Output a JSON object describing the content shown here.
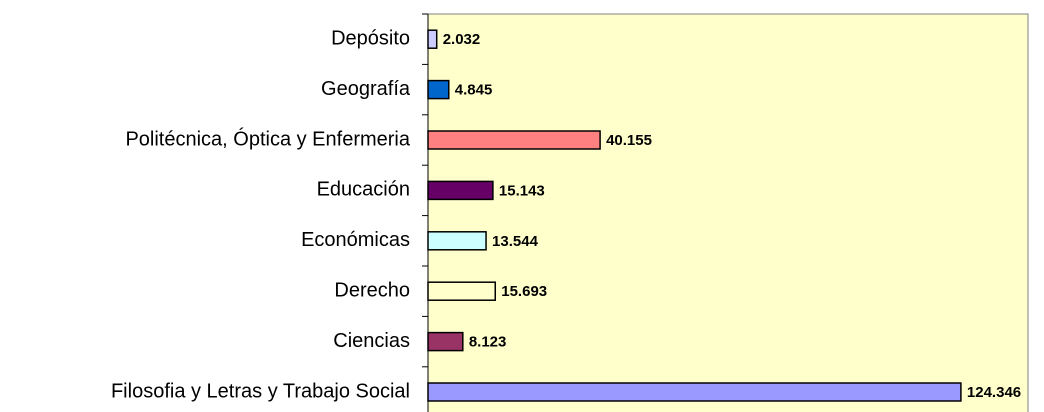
{
  "chart_data": {
    "type": "bar",
    "orientation": "horizontal",
    "categories": [
      "Depósito",
      "Geografía",
      "Politécnica, Óptica y Enfermeria",
      "Educación",
      "Económicas",
      "Derecho",
      "Ciencias",
      "Filosofia y Letras y Trabajo Social"
    ],
    "values": [
      2032,
      4845,
      40155,
      15143,
      13544,
      15693,
      8123,
      124346
    ],
    "value_labels": [
      "2.032",
      "4.845",
      "40.155",
      "15.143",
      "13.544",
      "15.693",
      "8.123",
      "124.346"
    ],
    "colors": [
      "#ccccff",
      "#0066cc",
      "#ff8080",
      "#660066",
      "#ccffff",
      "#ffffcc",
      "#993366",
      "#9999ff"
    ],
    "xlim": [
      0,
      140000
    ]
  }
}
